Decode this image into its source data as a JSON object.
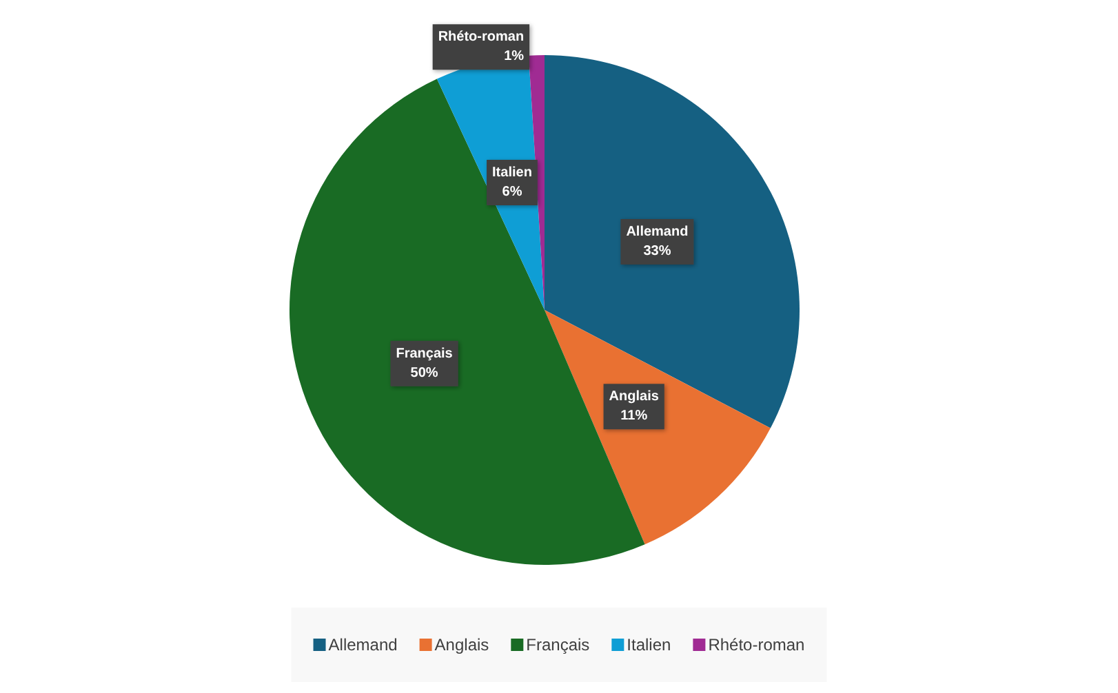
{
  "chart_data": {
    "type": "pie",
    "categories": [
      "Allemand",
      "Anglais",
      "Français",
      "Italien",
      "Rhéto-roman"
    ],
    "values": [
      33,
      11,
      50,
      6,
      1
    ],
    "value_labels": [
      "33%",
      "11%",
      "50%",
      "6%",
      "1%"
    ],
    "colors": [
      "#156082",
      "#e97132",
      "#196b24",
      "#0f9ed5",
      "#a02b93"
    ],
    "legend": "bottom"
  }
}
